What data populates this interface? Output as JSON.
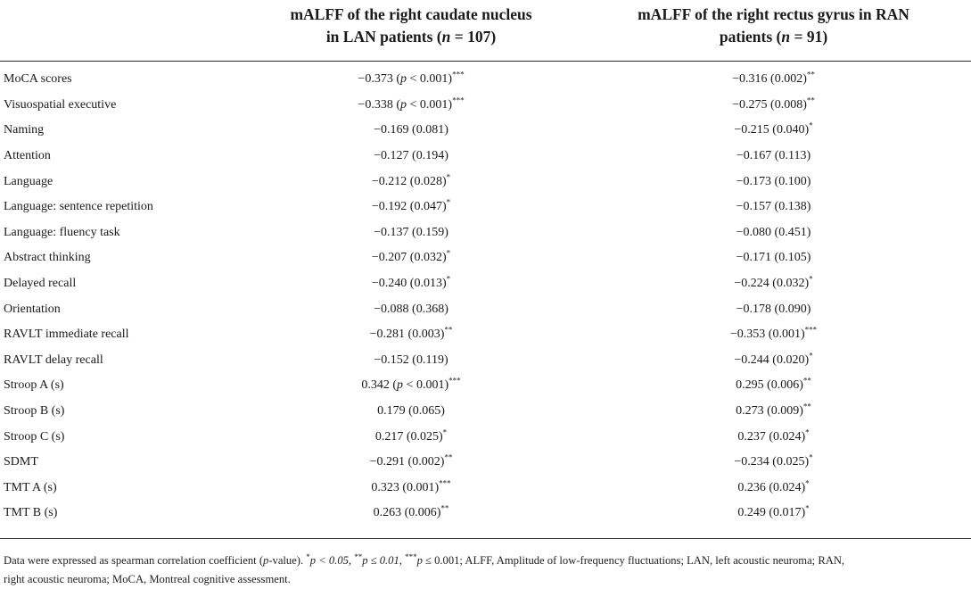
{
  "header": {
    "lan_col_line1": "mALFF of the right caudate nucleus",
    "lan_col_line2_pre": "in LAN patients (",
    "lan_col_n_var": "n",
    "lan_col_n_rest": " = 107)",
    "ran_col_line1": "mALFF of the right rectus gyrus in RAN",
    "ran_col_line2_pre": "patients (",
    "ran_col_n_var": "n",
    "ran_col_n_rest": " = 91)"
  },
  "rows": [
    {
      "label": "MoCA scores",
      "lan": {
        "r": "−0.373",
        "p": "(p < 0.001)",
        "p_italic_var": true,
        "sig": "***"
      },
      "ran": {
        "r": "−0.316",
        "p": "(0.002)",
        "sig": "**"
      }
    },
    {
      "label": "Visuospatial executive",
      "lan": {
        "r": "−0.338",
        "p": "(p < 0.001)",
        "p_italic_var": true,
        "sig": "***"
      },
      "ran": {
        "r": "−0.275",
        "p": "(0.008)",
        "sig": "**"
      }
    },
    {
      "label": "Naming",
      "lan": {
        "r": "−0.169",
        "p": "(0.081)",
        "sig": ""
      },
      "ran": {
        "r": "−0.215",
        "p": "(0.040)",
        "sig": "*"
      }
    },
    {
      "label": "Attention",
      "lan": {
        "r": "−0.127",
        "p": "(0.194)",
        "sig": ""
      },
      "ran": {
        "r": "−0.167",
        "p": "(0.113)",
        "sig": ""
      }
    },
    {
      "label": "Language",
      "lan": {
        "r": "−0.212",
        "p": "(0.028)",
        "sig": "*"
      },
      "ran": {
        "r": "−0.173",
        "p": "(0.100)",
        "sig": ""
      }
    },
    {
      "label": "Language: sentence repetition",
      "lan": {
        "r": "−0.192",
        "p": "(0.047)",
        "sig": "*"
      },
      "ran": {
        "r": "−0.157",
        "p": "(0.138)",
        "sig": ""
      }
    },
    {
      "label": "Language: fluency task",
      "lan": {
        "r": "−0.137",
        "p": "(0.159)",
        "sig": ""
      },
      "ran": {
        "r": "−0.080",
        "p": "(0.451)",
        "sig": ""
      }
    },
    {
      "label": "Abstract thinking",
      "lan": {
        "r": "−0.207",
        "p": "(0.032)",
        "sig": "*"
      },
      "ran": {
        "r": "−0.171",
        "p": "(0.105)",
        "sig": ""
      }
    },
    {
      "label": "Delayed recall",
      "lan": {
        "r": "−0.240",
        "p": "(0.013)",
        "sig": "*"
      },
      "ran": {
        "r": "−0.224",
        "p": "(0.032)",
        "sig": "*"
      }
    },
    {
      "label": "Orientation",
      "lan": {
        "r": "−0.088",
        "p": "(0.368)",
        "sig": ""
      },
      "ran": {
        "r": "−0.178",
        "p": "(0.090)",
        "sig": ""
      }
    },
    {
      "label": "RAVLT immediate recall",
      "lan": {
        "r": "−0.281",
        "p": "(0.003)",
        "sig": "**"
      },
      "ran": {
        "r": "−0.353",
        "p": "(0.001)",
        "sig": "***"
      }
    },
    {
      "label": "RAVLT delay recall",
      "lan": {
        "r": "−0.152",
        "p": "(0.119)",
        "sig": ""
      },
      "ran": {
        "r": "−0.244",
        "p": "(0.020)",
        "sig": "*"
      }
    },
    {
      "label": "Stroop A (s)",
      "lan": {
        "r": "0.342",
        "p": "(p < 0.001)",
        "p_italic_var": true,
        "sig": "***"
      },
      "ran": {
        "r": "0.295",
        "p": "(0.006)",
        "sig": "**"
      }
    },
    {
      "label": "Stroop B (s)",
      "lan": {
        "r": "0.179",
        "p": "(0.065)",
        "sig": ""
      },
      "ran": {
        "r": "0.273",
        "p": "(0.009)",
        "sig": "**"
      }
    },
    {
      "label": "Stroop C (s)",
      "lan": {
        "r": "0.217",
        "p": "(0.025)",
        "sig": "*"
      },
      "ran": {
        "r": "0.237",
        "p": "(0.024)",
        "sig": "*"
      }
    },
    {
      "label": "SDMT",
      "lan": {
        "r": "−0.291",
        "p": "(0.002)",
        "sig": "**"
      },
      "ran": {
        "r": "−0.234",
        "p": "(0.025)",
        "sig": "*"
      }
    },
    {
      "label": "TMT A (s)",
      "lan": {
        "r": "0.323",
        "p": "(0.001)",
        "sig": "***"
      },
      "ran": {
        "r": "0.236",
        "p": "(0.024)",
        "sig": "*"
      }
    },
    {
      "label": "TMT B (s)",
      "lan": {
        "r": "0.263",
        "p": "(0.006)",
        "sig": "**"
      },
      "ran": {
        "r": "0.249",
        "p": "(0.017)",
        "sig": "*"
      }
    }
  ],
  "footnote": {
    "part1": "Data were expressed as spearman correlation coefficient (",
    "p_var": "p",
    "part2": "-value). ",
    "s1": "*",
    "t1": "p < 0.05, ",
    "s2": "**",
    "t2": "p ≤ 0.01, ",
    "s3": "***",
    "t3": "p ≤ 0.001; ALFF, Amplitude of low-frequency fluctuations; LAN, left acoustic neuroma; RAN,",
    "line2": "right acoustic neuroma; MoCA, Montreal cognitive assessment."
  }
}
